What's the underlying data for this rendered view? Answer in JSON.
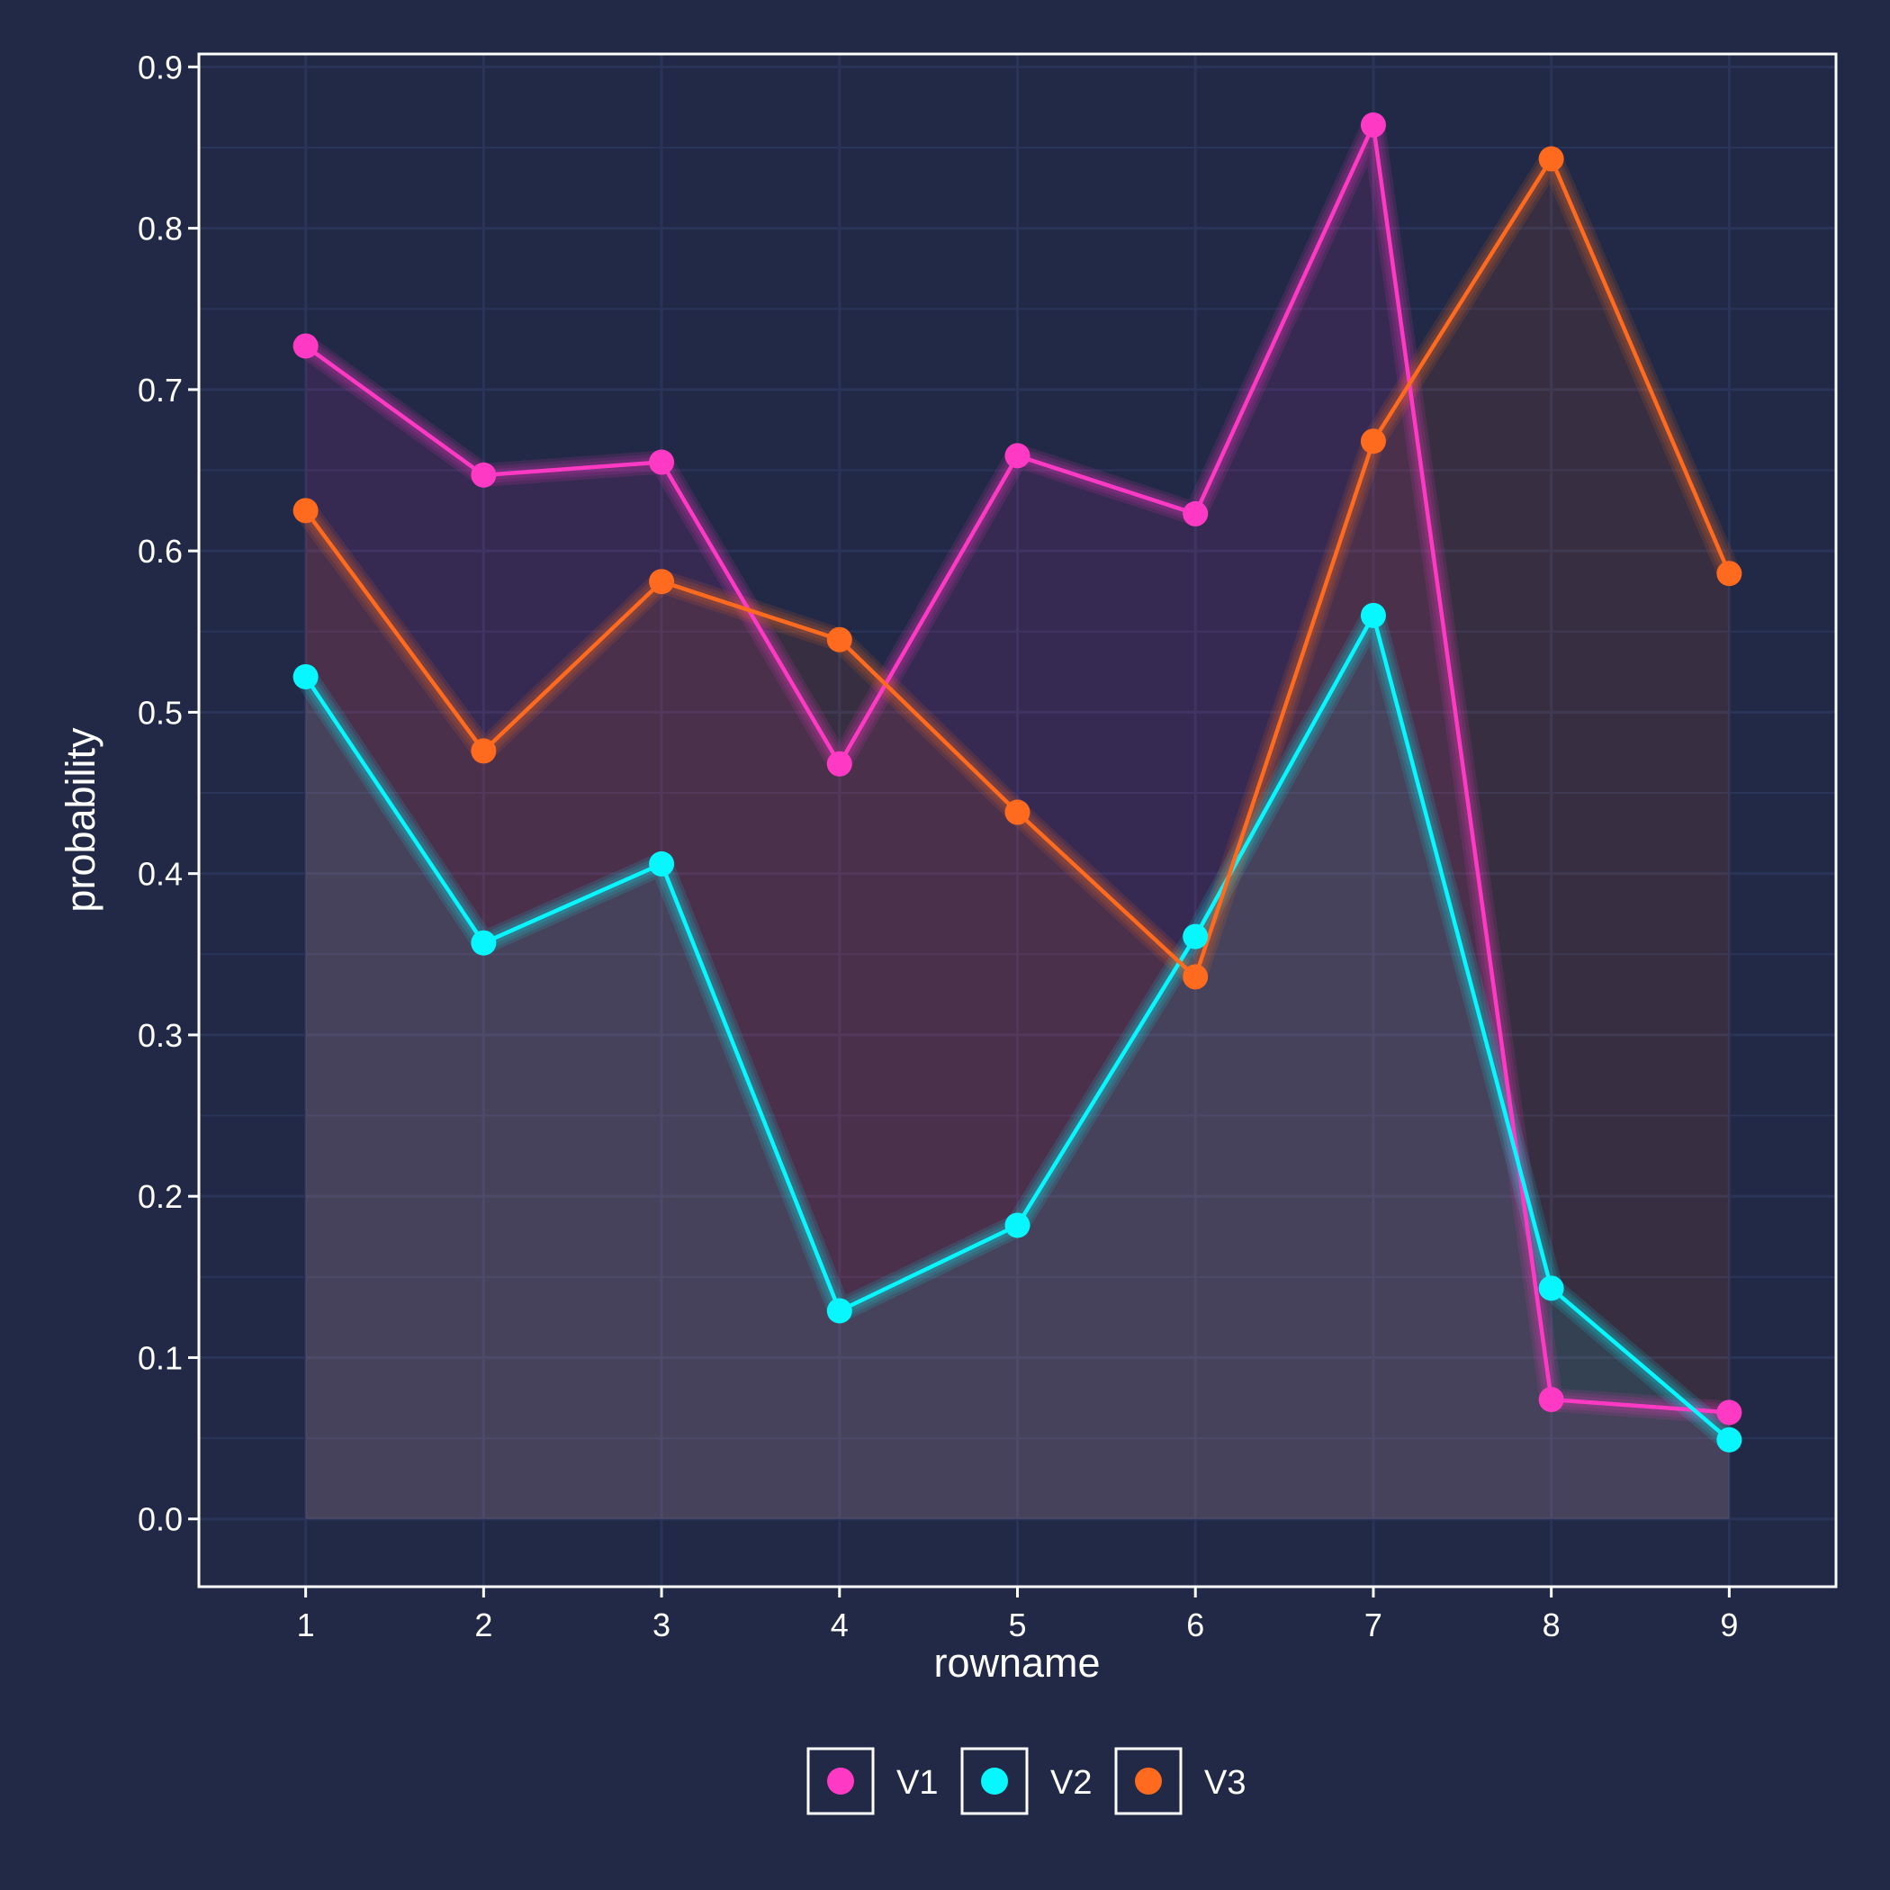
{
  "chart_data": {
    "type": "line",
    "x": [
      1,
      2,
      3,
      4,
      5,
      6,
      7,
      8,
      9
    ],
    "series": [
      {
        "name": "V1",
        "color": "#FE3AC5",
        "values": [
          0.727,
          0.647,
          0.655,
          0.468,
          0.659,
          0.623,
          0.864,
          0.074,
          0.066
        ]
      },
      {
        "name": "V2",
        "color": "#08F7FE",
        "values": [
          0.522,
          0.357,
          0.406,
          0.129,
          0.182,
          0.361,
          0.56,
          0.143,
          0.049
        ]
      },
      {
        "name": "V3",
        "color": "#FE6A1E",
        "values": [
          0.625,
          0.476,
          0.581,
          0.545,
          0.438,
          0.336,
          0.668,
          0.843,
          0.586
        ]
      }
    ],
    "xlabel": "rowname",
    "ylabel": "probability",
    "x_ticks": [
      "1",
      "2",
      "3",
      "4",
      "5",
      "6",
      "7",
      "8",
      "9"
    ],
    "y_ticks": [
      "0.0",
      "0.1",
      "0.2",
      "0.3",
      "0.4",
      "0.5",
      "0.6",
      "0.7",
      "0.8",
      "0.9"
    ],
    "xlim": [
      0.4,
      9.6
    ],
    "ylim": [
      -0.042,
      0.908
    ],
    "grid": true,
    "legend_position": "bottom",
    "background_color": "#212946",
    "grid_color": "#2A3459"
  }
}
